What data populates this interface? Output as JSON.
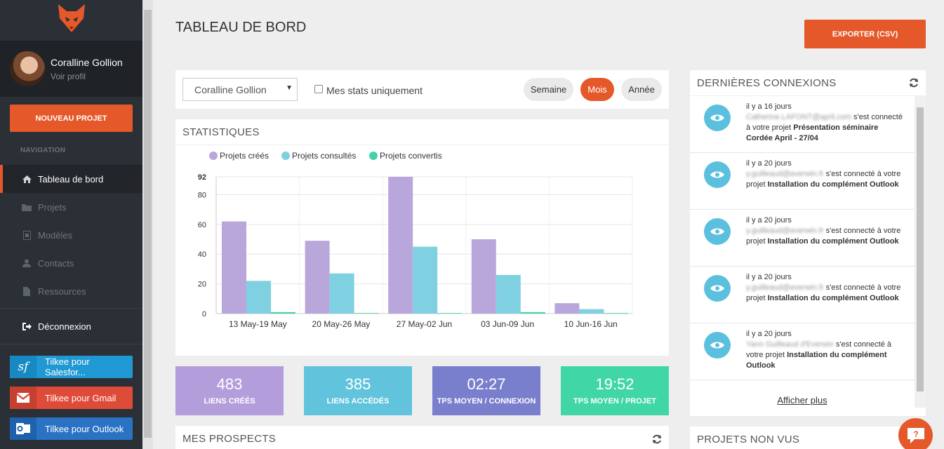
{
  "sidebar": {
    "profile_name": "Coralline Gollion",
    "profile_link": "Voir profil",
    "new_project": "NOUVEAU PROJET",
    "nav_title": "NAVIGATION",
    "items": [
      {
        "label": "Tableau de bord",
        "icon": "home-icon"
      },
      {
        "label": "Projets",
        "icon": "folder-icon"
      },
      {
        "label": "Modèles",
        "icon": "template-icon"
      },
      {
        "label": "Contacts",
        "icon": "user-icon"
      },
      {
        "label": "Ressources",
        "icon": "file-icon"
      }
    ],
    "logout": "Déconnexion",
    "ext_salesforce": "Tilkee pour Salesfor...",
    "ext_gmail": "Tilkee pour Gmail",
    "ext_outlook": "Tilkee pour Outlook"
  },
  "header": {
    "title": "TABLEAU DE BORD",
    "export": "EXPORTER (CSV)"
  },
  "filters": {
    "user_select": "Coralline Gollion",
    "mine_only": "Mes stats uniquement",
    "periods": [
      "Semaine",
      "Mois",
      "Année"
    ],
    "active_period": "Mois"
  },
  "stats": {
    "title": "STATISTIQUES"
  },
  "chart_data": {
    "type": "bar",
    "categories": [
      "13 May-19 May",
      "20 May-26 May",
      "27 May-02 Jun",
      "03 Jun-09 Jun",
      "10 Jun-16 Jun"
    ],
    "series": [
      {
        "name": "Projets créés",
        "color": "#b9a7dc",
        "values": [
          62,
          49,
          92,
          50,
          7
        ]
      },
      {
        "name": "Projets consultés",
        "color": "#7fd0e0",
        "values": [
          22,
          27,
          45,
          26,
          3
        ]
      },
      {
        "name": "Projets convertis",
        "color": "#40d3aa",
        "values": [
          1,
          0,
          0,
          1,
          0
        ]
      }
    ],
    "yticks": [
      0,
      20,
      40,
      60,
      80,
      92
    ],
    "ylim": [
      0,
      92
    ],
    "legend": "top-left",
    "grid": true
  },
  "kpis": [
    {
      "value": "483",
      "label": "LIENS CRÉÉS",
      "color": "#b39ddb"
    },
    {
      "value": "385",
      "label": "LIENS ACCÉDÉS",
      "color": "#62c3dc"
    },
    {
      "value": "02:27",
      "label": "TPS MOYEN / CONNEXION",
      "color": "#7a7fcd"
    },
    {
      "value": "19:52",
      "label": "TPS MOYEN / PROJET",
      "color": "#40d6a6"
    }
  ],
  "prospects": {
    "title": "MES PROSPECTS"
  },
  "connexions": {
    "title": "DERNIÈRES CONNEXIONS",
    "items": [
      {
        "time": "il y a 16 jours",
        "who": "Catherine.LAFONT@april.com",
        "text": " s'est connecté à votre projet ",
        "project": "Présentation séminaire Cordée April - 27/04"
      },
      {
        "time": "il y a 20 jours",
        "who": "y.guilleaud@everwin.fr",
        "text": " s'est connecté à votre projet ",
        "project": "Installation du complément Outlook"
      },
      {
        "time": "il y a 20 jours",
        "who": "y.guilleaud@everwin.fr",
        "text": " s'est connecté à votre projet ",
        "project": "Installation du complément Outlook"
      },
      {
        "time": "il y a 20 jours",
        "who": "y.guilleaud@everwin.fr",
        "text": " s'est connecté à votre projet ",
        "project": "Installation du complément Outlook"
      },
      {
        "time": "il y a 20 jours",
        "who": "Yann Guilleaud d'Everwin",
        "text": " s'est connecté à votre projet ",
        "project": "Installation du complément Outlook"
      }
    ],
    "more": "Afficher plus"
  },
  "nonvus": {
    "title": "PROJETS NON VUS"
  }
}
